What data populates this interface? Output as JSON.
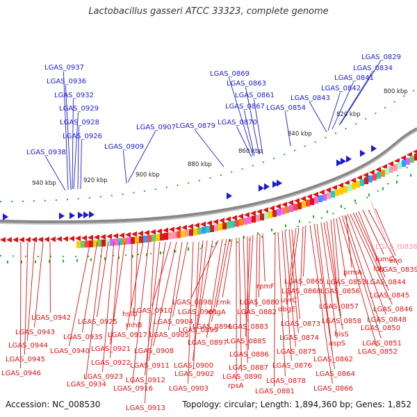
{
  "title": "Lactobacillus gasseri ATCC 33323, complete genome",
  "footer": {
    "accession": "Accession: NC_008530",
    "topology": "Topology: circular; Length: 1,894,360 bp; Genes: 1,852"
  },
  "scale_labels": [
    "800 kbp",
    "820 kbp",
    "840 kbp",
    "860 kbp",
    "880 kbp",
    "900 kbp",
    "920 kbp",
    "940 kbp"
  ],
  "top_labels": [
    "LGAS_0829",
    "LGAS_0834",
    "LGAS_0841",
    "LGAS_0842",
    "LGAS_0843",
    "LGAS_0854",
    "LGAS_0861",
    "LGAS_0863",
    "LGAS_0867",
    "LGAS_0869",
    "LGAS_0870",
    "LGAS_0879",
    "LGAS_0907",
    "LGAS_0909",
    "LGAS_0926",
    "LGAS_0928",
    "LGAS_0929",
    "LGAS_0932",
    "LGAS_0936",
    "LGAS_0937",
    "LGAS_0938"
  ],
  "bottom_labels": [
    "eno",
    "LGAS_0839",
    "fumC",
    "ldh",
    "prmA",
    "LGAS_0844",
    "LGAS_0845",
    "LGAS_0846",
    "LGAS_0848",
    "LGAS_0850",
    "LGAS_0851",
    "LGAS_0852",
    "LGAS_0853",
    "LGAS_0856",
    "LGAS_0857",
    "LGAS_0858",
    "hisS",
    "aspS",
    "LGAS_0862",
    "LGAS_0864",
    "LGAS_0866",
    "LGAS_0865",
    "LGAS_0868",
    "uvrC",
    "obgE",
    "LGAS_0873",
    "LGAS_0874",
    "LGAS_0875",
    "LGAS_0876",
    "LGAS_0878",
    "LGAS_0881",
    "rpmF",
    "LGAS_0880",
    "LGAS_0882",
    "LGAS_0883",
    "LGAS_0885",
    "LGAS_0886",
    "LGAS_0887",
    "LGAS_0890",
    "rpsA",
    "cmk",
    "engA",
    "LGAS_0896",
    "LGAS_0897",
    "LGAS_0898",
    "LGAS_0899",
    "LGAS_0900",
    "LGAS_0901",
    "LGAS_0902",
    "LGAS_0903",
    "LGAS_0904",
    "LGAS_0905",
    "LGAS_0908",
    "LGAS_0910",
    "LGAS_0911",
    "LGAS_0912",
    "LGAS_0913",
    "LGAS_0916",
    "LGAS_0917",
    "rnhB",
    "hslU",
    "LGAS_0921",
    "LGAS_0922",
    "LGAS_0923",
    "LGAS_0925",
    "LGAS_0934",
    "LGAS_0935",
    "LGAS_0940",
    "LGAS_0942",
    "LGAS_0943",
    "LGAS_0944",
    "LGAS_0945",
    "LGAS_0946"
  ],
  "rna_labels": [
    "LGAS_t0836"
  ],
  "colors": {
    "forward_gene": "#1a1ad4",
    "reverse_gene": "#e01010",
    "rna_gene": "#ff88bb",
    "backbone": "#777777",
    "tick": "#22aa22"
  }
}
